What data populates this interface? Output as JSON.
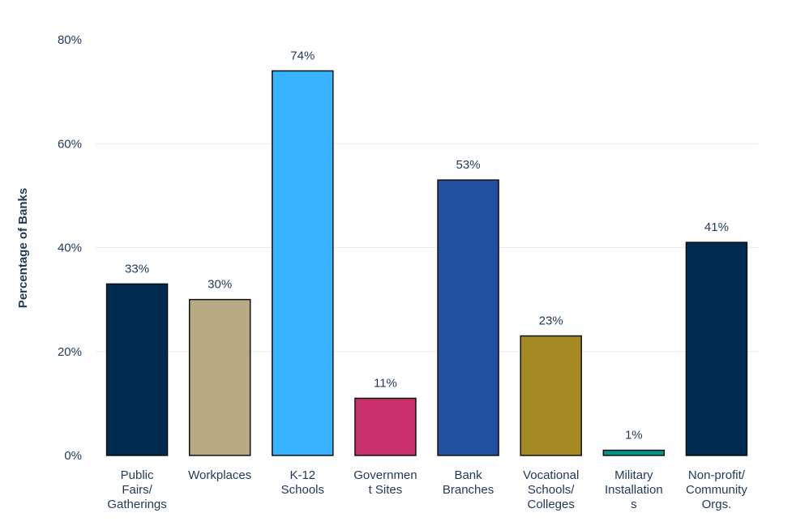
{
  "chart_data": {
    "type": "bar",
    "title": "",
    "xlabel": "",
    "ylabel": "Percentage of Banks",
    "ylim": [
      0,
      80
    ],
    "yticks": [
      0,
      20,
      40,
      60,
      80
    ],
    "ytick_labels": [
      "0%",
      "20%",
      "40%",
      "60%",
      "80%"
    ],
    "grid": true,
    "categories": [
      [
        "Public",
        "Fairs/",
        "Gatherings"
      ],
      [
        "Workplaces"
      ],
      [
        "K-12",
        "Schools"
      ],
      [
        "Governmen",
        "t Sites"
      ],
      [
        "Bank",
        "Branches"
      ],
      [
        "Vocational",
        "Schools/",
        "Colleges"
      ],
      [
        "Military",
        "Installation",
        "s"
      ],
      [
        "Non-profit/",
        "Community",
        "Orgs."
      ]
    ],
    "values": [
      33,
      30,
      74,
      11,
      53,
      23,
      1,
      41
    ],
    "value_labels": [
      "33%",
      "30%",
      "74%",
      "11%",
      "53%",
      "23%",
      "1%",
      "41%"
    ],
    "colors": [
      "#002b4f",
      "#b8aa83",
      "#38b3ff",
      "#c8306a",
      "#2150a0",
      "#a58a24",
      "#009688",
      "#002b4f"
    ]
  }
}
